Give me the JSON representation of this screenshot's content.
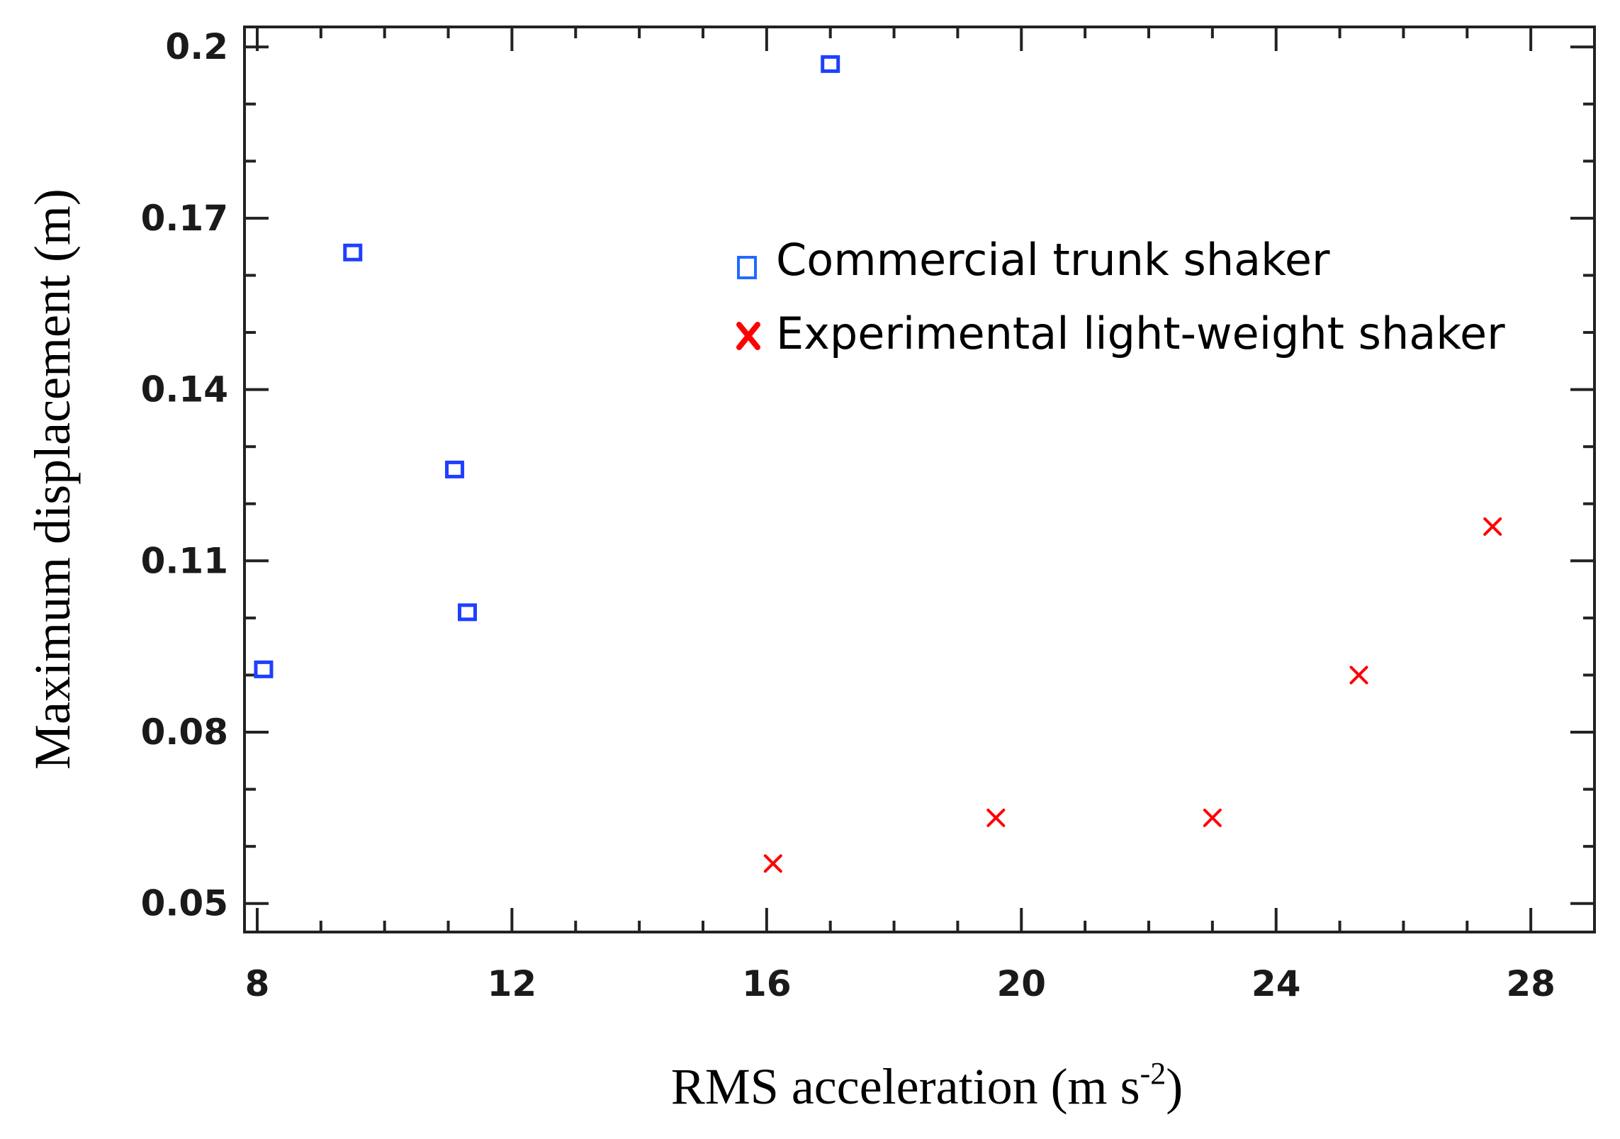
{
  "chart_data": {
    "type": "scatter",
    "title": "",
    "xlabel": "RMS acceleration (m s",
    "xlabel_sup": "-2",
    "xlabel_end": ")",
    "ylabel": "Maximum displacement (m)",
    "xlim": [
      7.8,
      29
    ],
    "ylim": [
      0.045,
      0.2035
    ],
    "xticks": [
      8,
      12,
      16,
      20,
      24,
      28
    ],
    "xtick_labels": [
      "8",
      "12",
      "16",
      "20",
      "24",
      "28"
    ],
    "yticks": [
      0.05,
      0.08,
      0.11,
      0.14,
      0.17,
      0.2
    ],
    "ytick_labels": [
      "0.05",
      "0.08",
      "0.11",
      "0.14",
      "0.17",
      "0.2"
    ],
    "legend_position": "top-right",
    "series": [
      {
        "name": "Commercial trunk shaker",
        "marker": "square",
        "color": "#1f3fff",
        "points": [
          {
            "x": 8.1,
            "y": 0.091
          },
          {
            "x": 9.5,
            "y": 0.164
          },
          {
            "x": 11.1,
            "y": 0.126
          },
          {
            "x": 11.3,
            "y": 0.101
          },
          {
            "x": 17.0,
            "y": 0.197
          }
        ]
      },
      {
        "name": "Experimental light-weight shaker",
        "marker": "x",
        "color": "#ff0000",
        "points": [
          {
            "x": 16.1,
            "y": 0.057
          },
          {
            "x": 19.6,
            "y": 0.065
          },
          {
            "x": 23.0,
            "y": 0.065
          },
          {
            "x": 25.3,
            "y": 0.09
          },
          {
            "x": 27.4,
            "y": 0.116
          }
        ]
      }
    ]
  }
}
